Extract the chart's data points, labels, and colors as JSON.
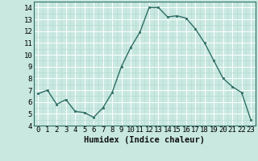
{
  "x": [
    0,
    1,
    2,
    3,
    4,
    5,
    6,
    7,
    8,
    9,
    10,
    11,
    12,
    13,
    14,
    15,
    16,
    17,
    18,
    19,
    20,
    21,
    22,
    23
  ],
  "y": [
    6.7,
    7.0,
    5.8,
    6.2,
    5.2,
    5.1,
    4.7,
    5.5,
    6.8,
    9.0,
    10.6,
    11.9,
    14.0,
    14.0,
    13.2,
    13.3,
    13.1,
    12.2,
    11.0,
    9.5,
    8.0,
    7.3,
    6.8,
    4.5
  ],
  "line_color": "#2e6e65",
  "marker": "s",
  "marker_size": 2.0,
  "bg_color": "#c8e8e0",
  "grid_major_color": "#ffffff",
  "grid_minor_color": "#b0d8d0",
  "xlabel": "Humidex (Indice chaleur)",
  "xlim": [
    -0.5,
    23.5
  ],
  "ylim": [
    4,
    14.5
  ],
  "yticks": [
    4,
    5,
    6,
    7,
    8,
    9,
    10,
    11,
    12,
    13,
    14
  ],
  "xticks": [
    0,
    1,
    2,
    3,
    4,
    5,
    6,
    7,
    8,
    9,
    10,
    11,
    12,
    13,
    14,
    15,
    16,
    17,
    18,
    19,
    20,
    21,
    22,
    23
  ],
  "xlabel_fontsize": 7.5,
  "tick_fontsize": 6.5,
  "line_width": 1.0,
  "spine_color": "#2e6e65"
}
